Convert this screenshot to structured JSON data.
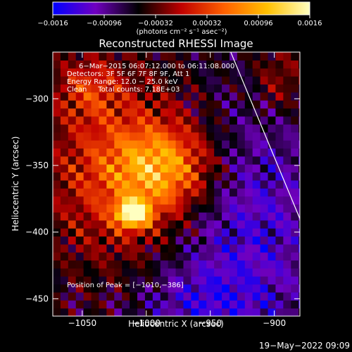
{
  "chart_data": {
    "type": "heatmap",
    "title": "Reconstructed RHESSI Image",
    "xlabel": "Heliocentric X (arcsec)",
    "ylabel": "Heliocentric Y (arcsec)",
    "xlim": [
      -1073,
      -880
    ],
    "ylim": [
      -463,
      -265
    ],
    "x_ticks": [
      {
        "v": -1050,
        "label": "−1050"
      },
      {
        "v": -1000,
        "label": "−1000"
      },
      {
        "v": -950,
        "label": "−950"
      },
      {
        "v": -900,
        "label": "−900"
      }
    ],
    "y_ticks": [
      {
        "v": -300,
        "label": "−300"
      },
      {
        "v": -350,
        "label": "−350"
      },
      {
        "v": -400,
        "label": "−400"
      },
      {
        "v": -450,
        "label": "−450"
      }
    ],
    "colorbar": {
      "range": [
        -0.0016,
        0.0016
      ],
      "ticks": [
        {
          "v": -0.0016,
          "label": "−0.0016"
        },
        {
          "v": -0.00096,
          "label": "−0.00096"
        },
        {
          "v": -0.00032,
          "label": "−0.00032"
        },
        {
          "v": 0.00032,
          "label": "0.00032"
        },
        {
          "v": 0.00096,
          "label": "0.00096"
        },
        {
          "v": 0.0016,
          "label": "0.0016"
        }
      ],
      "units": "(photons cm⁻² s⁻¹ asec⁻²)",
      "colors": [
        "#0000ff",
        "#7000c0",
        "#000000",
        "#c00000",
        "#ff6000",
        "#ffc000",
        "#ffffc0"
      ]
    },
    "annotations": [
      "6−Mar−2015 06:07:12.000 to 06:11:08.000",
      "Detectors: 3F 5F 6F 7F 8F 9F, Att 1",
      "Energy Range: 12.0 − 25.0 keV",
      "Clean     Total counts: 7.18E+03"
    ],
    "peak_label": "Position of Peak = [−1010,−386]",
    "peak": {
      "x": -1010,
      "y": -386
    },
    "limb_line": [
      [
        -934,
        -265
      ],
      [
        -880,
        -390
      ]
    ],
    "timestamp": "19−May−2022 09:09"
  }
}
